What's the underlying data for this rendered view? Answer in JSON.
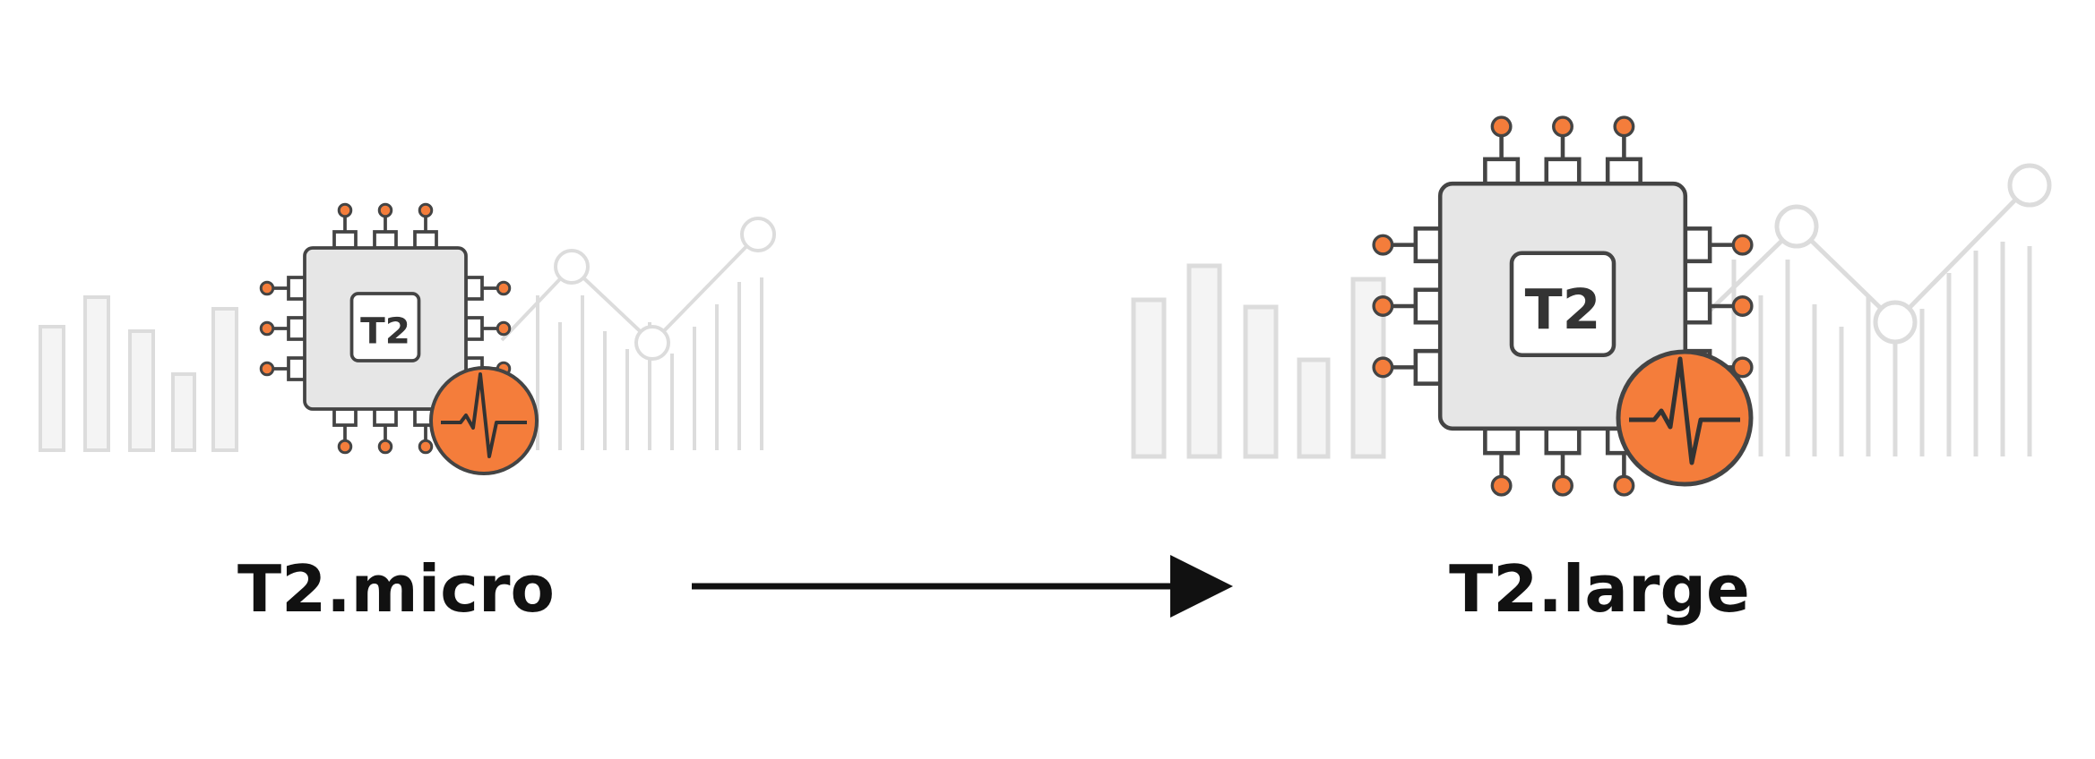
{
  "diagram": {
    "source": {
      "label": "T2.micro",
      "chip_text": "T2"
    },
    "target": {
      "label": "T2.large",
      "chip_text": "T2"
    },
    "icons": {
      "chip": "cpu-chip-icon",
      "monitor": "heartbeat-icon",
      "background_chart": "bar-line-chart-icon",
      "arrow": "arrow-right-icon"
    },
    "colors": {
      "accent": "#F47D3B",
      "chip_fill": "#E6E6E6",
      "chip_stroke": "#444444",
      "chart_stroke": "#D6D6D6",
      "text": "#111111"
    }
  }
}
